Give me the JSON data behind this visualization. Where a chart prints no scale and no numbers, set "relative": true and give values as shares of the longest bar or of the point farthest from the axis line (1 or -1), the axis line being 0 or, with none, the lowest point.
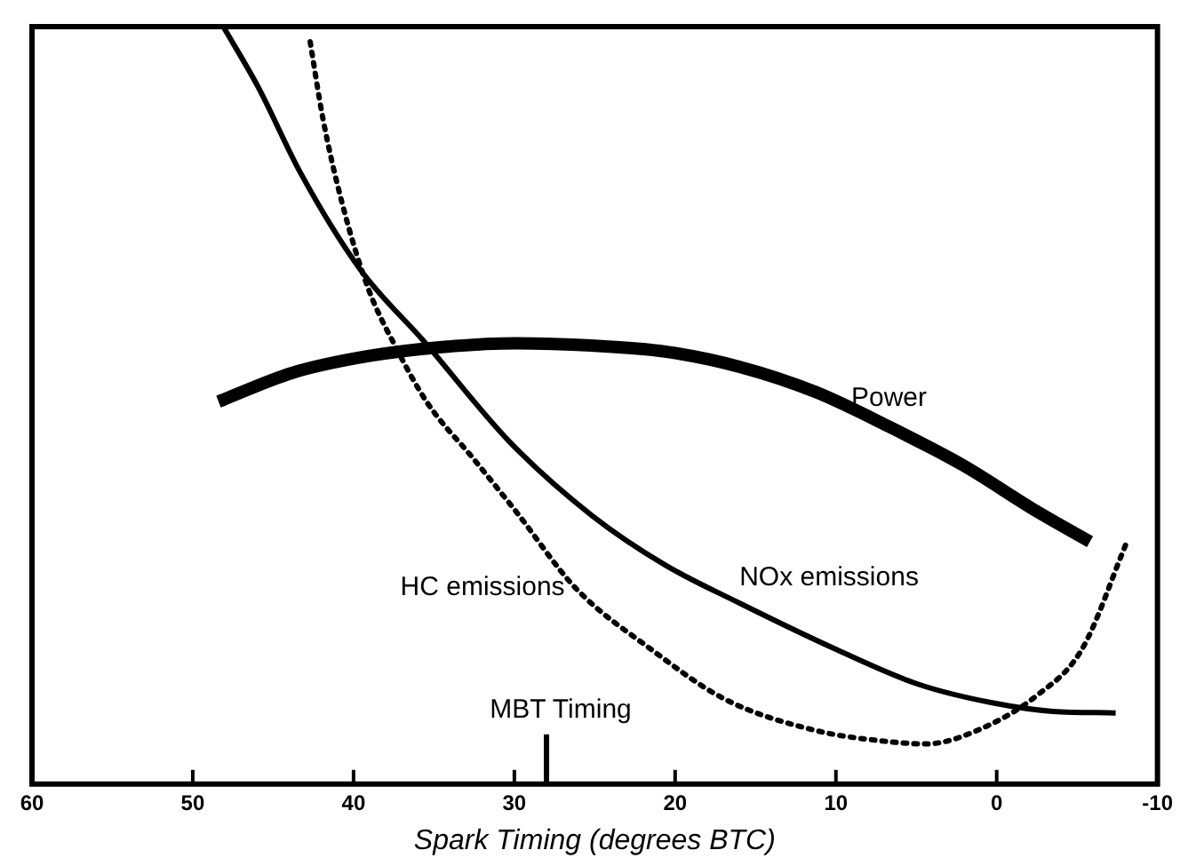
{
  "chart_data": {
    "type": "line",
    "xlabel": "Spark Timing (degrees BTC)",
    "relative": true,
    "xlim": [
      60,
      -10
    ],
    "xticks": [
      60,
      50,
      40,
      30,
      20,
      10,
      0,
      -10
    ],
    "grid": false,
    "legend": false,
    "marker": "none",
    "series": [
      {
        "name": "Power",
        "color": "#000000",
        "line_style": "solid",
        "x": [
          48.4,
          43.8,
          39.1,
          34.5,
          29.9,
          25.2,
          20.6,
          16.0,
          11.3,
          6.7,
          2.1,
          -2.5,
          -5.8
        ],
        "values": [
          0.505,
          0.543,
          0.565,
          0.577,
          0.582,
          0.579,
          0.571,
          0.551,
          0.518,
          0.472,
          0.421,
          0.36,
          0.32
        ]
      },
      {
        "name": "NOx emissions",
        "color": "#000000",
        "line_style": "solid",
        "x": [
          48.1,
          45.9,
          43.3,
          39.6,
          35.6,
          30.3,
          25.2,
          20.6,
          16.0,
          10.0,
          4.9,
          0.2,
          -3.5,
          -7.4
        ],
        "values": [
          1.0,
          0.919,
          0.807,
          0.68,
          0.584,
          0.452,
          0.355,
          0.289,
          0.239,
          0.178,
          0.132,
          0.107,
          0.096,
          0.094
        ]
      },
      {
        "name": "HC emissions",
        "color": "#000000",
        "line_style": "dotted",
        "x": [
          42.7,
          41.9,
          40.7,
          39.1,
          37.3,
          35.4,
          32.6,
          29.9,
          26.2,
          21.5,
          16.9,
          11.3,
          6.7,
          4.4,
          1.2,
          -2.5,
          -5.3,
          -8.1
        ],
        "values": [
          0.98,
          0.878,
          0.766,
          0.655,
          0.574,
          0.503,
          0.431,
          0.36,
          0.259,
          0.178,
          0.112,
          0.071,
          0.056,
          0.053,
          0.071,
          0.117,
          0.178,
          0.32
        ]
      }
    ],
    "ref_lines": [
      {
        "axis": "x",
        "value": 28,
        "label": "MBT Timing",
        "color": "#000000"
      }
    ]
  }
}
